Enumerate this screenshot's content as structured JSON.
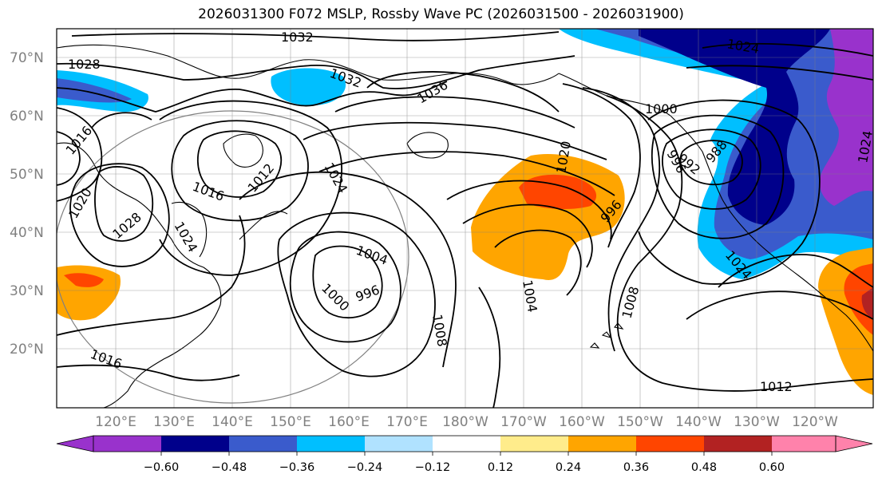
{
  "title": "2026031300 F072 MSLP, Rossby Wave PC (2026031500 - 2026031900)",
  "lat_labels": [
    "70°N",
    "60°N",
    "50°N",
    "40°N",
    "30°N",
    "20°N"
  ],
  "lon_labels": [
    "120°E",
    "130°E",
    "140°E",
    "150°E",
    "160°E",
    "170°E",
    "180°W",
    "170°W",
    "160°W",
    "150°W",
    "140°W",
    "130°W",
    "120°W"
  ],
  "colorbar": {
    "ticks": [
      "−0.60",
      "−0.48",
      "−0.36",
      "−0.24",
      "−0.12",
      "0.12",
      "0.24",
      "0.36",
      "0.48",
      "0.60"
    ],
    "colors": [
      "#9932CC",
      "#00008B",
      "#3A5BCC",
      "#00BFFF",
      "#B0E2FF",
      "#FFFFFF",
      "#FFEC8B",
      "#FFA500",
      "#FF4500",
      "#B22222",
      "#FF82AB"
    ]
  },
  "contour_labels": [
    "1032",
    "1028",
    "1032",
    "1036",
    "1024",
    "1016",
    "1012",
    "1024",
    "1016",
    "1028",
    "1020",
    "1024",
    "1004",
    "996",
    "1000",
    "1008",
    "1016",
    "1020",
    "1000",
    "996",
    "992",
    "988",
    "996",
    "1004",
    "1008",
    "1024",
    "1012",
    "1024"
  ]
}
